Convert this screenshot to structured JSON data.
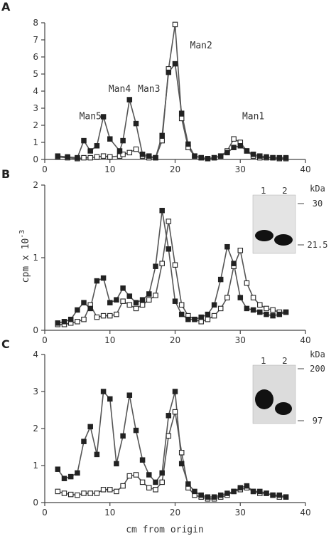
{
  "chart_data": [
    {
      "panel": "A",
      "type": "line",
      "xlim": [
        0,
        40
      ],
      "ylim": [
        0,
        8
      ],
      "xticks": [
        0,
        10,
        20,
        30,
        40
      ],
      "yticks": [
        0,
        1,
        2,
        3,
        4,
        5,
        6,
        7,
        8
      ],
      "annotations": [
        {
          "text": "Man5",
          "x": 7,
          "y": 2.35
        },
        {
          "text": "Man4",
          "x": 11.5,
          "y": 3.95
        },
        {
          "text": "Man3",
          "x": 16,
          "y": 3.95
        },
        {
          "text": "Man2",
          "x": 24,
          "y": 6.5
        },
        {
          "text": "Man1",
          "x": 32,
          "y": 2.35
        }
      ],
      "series": [
        {
          "marker": "filled",
          "x": [
            2,
            3.5,
            5,
            6,
            7,
            8,
            9,
            10,
            11.5,
            12,
            13,
            14,
            15,
            16,
            17,
            18,
            19,
            20,
            21,
            22,
            23,
            24,
            25,
            26,
            27,
            28,
            29,
            30,
            31,
            32,
            33,
            34,
            35,
            36,
            37
          ],
          "y": [
            0.2,
            0.15,
            0.1,
            1.1,
            0.5,
            0.8,
            2.5,
            1.2,
            0.5,
            1.1,
            3.5,
            2.1,
            0.3,
            0.2,
            0.1,
            1.4,
            5.1,
            5.6,
            2.7,
            0.9,
            0.2,
            0.1,
            0.05,
            0.1,
            0.2,
            0.4,
            0.7,
            0.8,
            0.5,
            0.3,
            0.2,
            0.15,
            0.1,
            0.1,
            0.1
          ]
        },
        {
          "marker": "open",
          "x": [
            2,
            3.5,
            5,
            6,
            7,
            8,
            9,
            10,
            11.5,
            12,
            13,
            14,
            15,
            16,
            17,
            18,
            19,
            20,
            21,
            22,
            23,
            24,
            25,
            26,
            27,
            28,
            29,
            30,
            31,
            32,
            33,
            34,
            35,
            36,
            37
          ],
          "y": [
            0.15,
            0.1,
            0.05,
            0.1,
            0.1,
            0.15,
            0.2,
            0.15,
            0.2,
            0.3,
            0.4,
            0.6,
            0.2,
            0.1,
            0.1,
            1.1,
            5.3,
            7.9,
            2.4,
            0.7,
            0.2,
            0.1,
            0.05,
            0.1,
            0.2,
            0.5,
            1.2,
            1.0,
            0.5,
            0.2,
            0.1,
            0.1,
            0.1,
            0.05,
            0.05
          ]
        }
      ]
    },
    {
      "panel": "B",
      "type": "line",
      "xlim": [
        0,
        40
      ],
      "ylim": [
        0,
        2
      ],
      "xticks": [
        0,
        10,
        20,
        30,
        40
      ],
      "yticks": [
        0,
        1,
        2
      ],
      "ylabel": "cpm x 10",
      "ylabel_exponent": "-3",
      "inset": {
        "lanes": [
          "1",
          "2"
        ],
        "unit": "kDa",
        "markers": [
          "30",
          "21.5"
        ]
      },
      "series": [
        {
          "marker": "filled",
          "x": [
            2,
            3,
            4,
            5,
            6,
            7,
            8,
            9,
            10,
            11,
            12,
            13,
            14,
            15,
            16,
            17,
            18,
            19,
            20,
            21,
            22,
            23,
            24,
            25,
            26,
            27,
            28,
            29,
            30,
            31,
            32,
            33,
            34,
            35,
            36,
            37
          ],
          "y": [
            0.1,
            0.12,
            0.15,
            0.28,
            0.38,
            0.3,
            0.68,
            0.72,
            0.38,
            0.42,
            0.58,
            0.47,
            0.38,
            0.42,
            0.5,
            0.88,
            1.65,
            1.12,
            0.4,
            0.22,
            0.15,
            0.15,
            0.18,
            0.22,
            0.35,
            0.7,
            1.15,
            0.92,
            0.45,
            0.3,
            0.28,
            0.25,
            0.22,
            0.2,
            0.22,
            0.25
          ]
        },
        {
          "marker": "open",
          "x": [
            2,
            3,
            4,
            5,
            6,
            7,
            8,
            9,
            10,
            11,
            12,
            13,
            14,
            15,
            16,
            17,
            18,
            19,
            20,
            21,
            22,
            23,
            24,
            25,
            26,
            27,
            28,
            29,
            30,
            31,
            32,
            33,
            34,
            35,
            36,
            37
          ],
          "y": [
            0.08,
            0.08,
            0.1,
            0.12,
            0.15,
            0.35,
            0.18,
            0.2,
            0.2,
            0.22,
            0.4,
            0.35,
            0.3,
            0.35,
            0.42,
            0.48,
            0.92,
            1.5,
            0.9,
            0.35,
            0.2,
            0.15,
            0.12,
            0.15,
            0.2,
            0.3,
            0.45,
            0.88,
            1.1,
            0.65,
            0.45,
            0.35,
            0.3,
            0.28,
            0.25,
            0.25
          ]
        }
      ]
    },
    {
      "panel": "C",
      "type": "line",
      "xlim": [
        0,
        40
      ],
      "ylim": [
        0,
        4
      ],
      "xticks": [
        0,
        10,
        20,
        30,
        40
      ],
      "yticks": [
        0,
        1,
        2,
        3,
        4
      ],
      "xlabel": "cm from origin",
      "inset": {
        "lanes": [
          "1",
          "2"
        ],
        "unit": "kDa",
        "markers": [
          "200",
          "97"
        ]
      },
      "series": [
        {
          "marker": "filled",
          "x": [
            2,
            3,
            4,
            5,
            6,
            7,
            8,
            9,
            10,
            11,
            12,
            13,
            14,
            15,
            16,
            17,
            18,
            19,
            20,
            21,
            22,
            23,
            24,
            25,
            26,
            27,
            28,
            29,
            30,
            31,
            32,
            33,
            34,
            35,
            36,
            37
          ],
          "y": [
            0.9,
            0.65,
            0.7,
            0.8,
            1.65,
            2.05,
            1.3,
            3.0,
            2.8,
            1.05,
            1.8,
            2.9,
            1.95,
            1.15,
            0.75,
            0.55,
            0.8,
            2.35,
            3.0,
            1.05,
            0.5,
            0.3,
            0.2,
            0.15,
            0.15,
            0.2,
            0.25,
            0.3,
            0.4,
            0.45,
            0.3,
            0.3,
            0.25,
            0.2,
            0.2,
            0.15
          ]
        },
        {
          "marker": "open",
          "x": [
            2,
            3,
            4,
            5,
            6,
            7,
            8,
            9,
            10,
            11,
            12,
            13,
            14,
            15,
            16,
            17,
            18,
            19,
            20,
            21,
            22,
            23,
            24,
            25,
            26,
            27,
            28,
            29,
            30,
            31,
            32,
            33,
            34,
            35,
            36,
            37
          ],
          "y": [
            0.3,
            0.25,
            0.22,
            0.2,
            0.25,
            0.25,
            0.25,
            0.35,
            0.35,
            0.3,
            0.45,
            0.72,
            0.75,
            0.55,
            0.4,
            0.35,
            0.55,
            1.8,
            2.45,
            1.35,
            0.4,
            0.2,
            0.15,
            0.1,
            0.1,
            0.15,
            0.2,
            0.3,
            0.35,
            0.4,
            0.3,
            0.25,
            0.25,
            0.2,
            0.15,
            0.15
          ]
        }
      ]
    }
  ],
  "panels": {
    "a": "A",
    "b": "B",
    "c": "C"
  }
}
